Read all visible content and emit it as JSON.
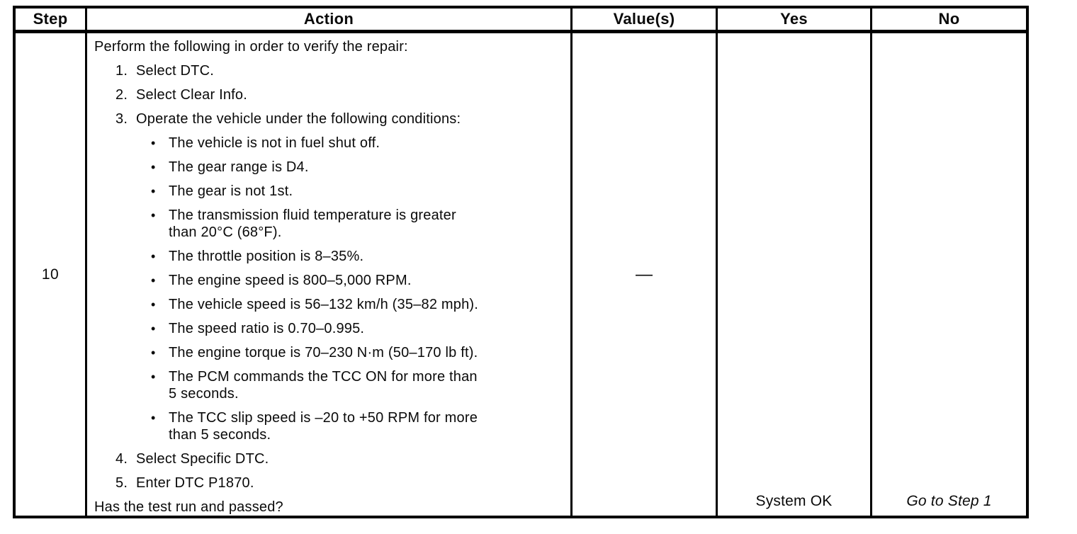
{
  "page": {
    "background": "#ffffff",
    "ink": "#0a0a0a",
    "border": "#000000"
  },
  "table": {
    "headers": {
      "step": "Step",
      "action": "Action",
      "values": "Value(s)",
      "yes": "Yes",
      "no": "No"
    },
    "row": {
      "step": "10",
      "action": {
        "intro": "Perform the following in order to verify the repair:",
        "bullet_glyph": "•",
        "steps": [
          {
            "num": "1.",
            "text": "Select DTC."
          },
          {
            "num": "2.",
            "text": "Select Clear Info."
          },
          {
            "num": "3.",
            "text": "Operate the vehicle under the following conditions:"
          },
          {
            "num": "4.",
            "text": "Select Specific DTC."
          },
          {
            "num": "5.",
            "text": "Enter DTC P1870."
          }
        ],
        "conditions": [
          {
            "lines": [
              "The vehicle is not in fuel shut off."
            ]
          },
          {
            "lines": [
              "The gear range is D4."
            ]
          },
          {
            "lines": [
              "The gear is not 1st."
            ]
          },
          {
            "lines": [
              "The transmission fluid temperature is greater",
              "than 20°C (68°F)."
            ]
          },
          {
            "lines": [
              "The throttle position is 8–35%."
            ]
          },
          {
            "lines": [
              "The engine speed is 800–5,000 RPM."
            ]
          },
          {
            "lines": [
              "The vehicle speed is 56–132 km/h (35–82 mph)."
            ]
          },
          {
            "lines": [
              "The speed ratio is 0.70–0.995."
            ]
          },
          {
            "lines": [
              "The engine torque is 70–230 N·m (50–170 lb ft)."
            ]
          },
          {
            "lines": [
              "The PCM commands the TCC ON for more than",
              "5 seconds."
            ]
          },
          {
            "lines": [
              "The TCC slip speed is –20 to +50 RPM for more",
              "than 5 seconds."
            ]
          }
        ],
        "question": "Has the test run and passed?"
      },
      "value": "—",
      "yes": "System OK",
      "no": "Go to Step 1"
    }
  }
}
